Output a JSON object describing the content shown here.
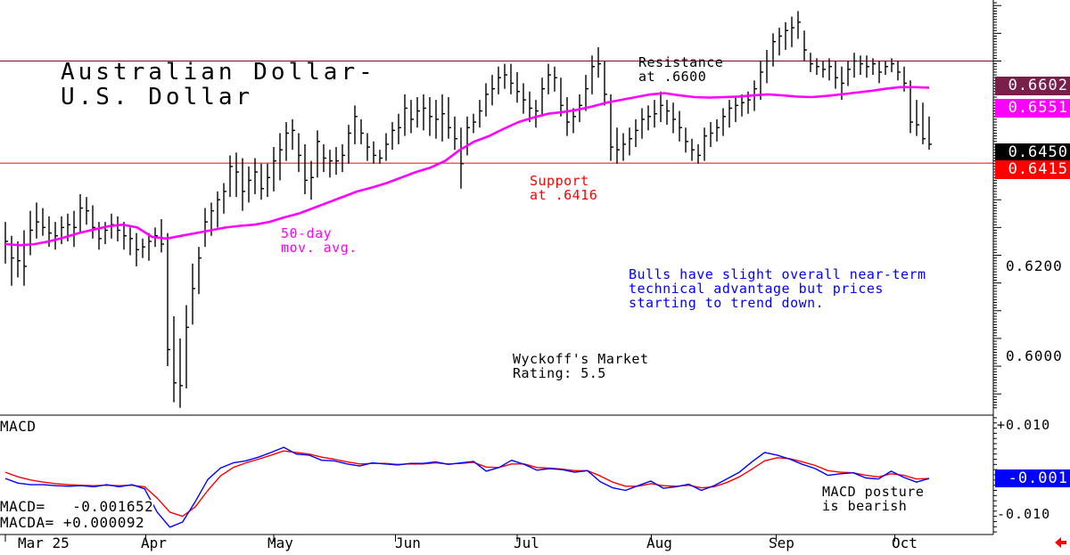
{
  "title_line1": "Australian Dollar-",
  "title_line2": "U.S. Dollar",
  "annotations": {
    "resistance_line1": "Resistance",
    "resistance_line2": "at .6600",
    "support_line1": "Support",
    "support_line2": "at .6416",
    "mavg_line1": "50-day",
    "mavg_line2": "mov. avg.",
    "commentary_line1": "Bulls have slight overall near-term",
    "commentary_line2": "technical advantage but prices",
    "commentary_line3": "starting to trend down.",
    "rating_line1": "Wyckoff's Market",
    "rating_line2": "Rating: 5.5",
    "macd_posture_line1": "MACD posture",
    "macd_posture_line2": "is bearish"
  },
  "price_tags": {
    "resistance": "0.6602",
    "moving_average": "0.6551",
    "last": "0.6450",
    "support": "0.6415"
  },
  "price_ticks": [
    "0.6200",
    "0.6000"
  ],
  "macd_panel": {
    "label": "MACD",
    "ticks": [
      "+0.010",
      "-0.010"
    ],
    "macd_tag": "-0.001",
    "macd_readout": "MACD=   -0.001652",
    "macda_readout": "MACDA= +0.000092"
  },
  "months": [
    "Mar 25",
    "Apr",
    "May",
    "Jun",
    "Jul",
    "Aug",
    "Sep",
    "Oct"
  ],
  "colors": {
    "bars": "#000000",
    "moving_average": "#ff00ff",
    "resistance_line": "#800040",
    "support_line": "#ff0000",
    "macd": "#0000ff",
    "macda": "#ff0000",
    "annotation_support": "#ff0000",
    "annotation_mavg": "#ff00ff",
    "annotation_commentary": "#0000ff",
    "tag_resistance": "#7a1f4a",
    "tag_mavg": "#ff00ff",
    "tag_last": "#000000",
    "tag_support": "#ff0000",
    "tag_macd": "#0000ff"
  },
  "chart_data": {
    "type": "ohlc",
    "price_ylim": [
      0.5965,
      0.671
    ],
    "macd_ylim": [
      -0.0125,
      0.0105
    ],
    "resistance": 0.66,
    "support": 0.6416,
    "price_bars": [
      {
        "h": 0.631,
        "l": 0.6235,
        "c": 0.6275
      },
      {
        "h": 0.6285,
        "l": 0.6195,
        "c": 0.6245
      },
      {
        "h": 0.6275,
        "l": 0.621,
        "c": 0.624
      },
      {
        "h": 0.6295,
        "l": 0.6195,
        "c": 0.623
      },
      {
        "h": 0.633,
        "l": 0.625,
        "c": 0.6295
      },
      {
        "h": 0.6345,
        "l": 0.628,
        "c": 0.631
      },
      {
        "h": 0.6335,
        "l": 0.6285,
        "c": 0.63
      },
      {
        "h": 0.632,
        "l": 0.6265,
        "c": 0.629
      },
      {
        "h": 0.631,
        "l": 0.626,
        "c": 0.6285
      },
      {
        "h": 0.632,
        "l": 0.627,
        "c": 0.63
      },
      {
        "h": 0.6325,
        "l": 0.6275,
        "c": 0.6305
      },
      {
        "h": 0.633,
        "l": 0.6265,
        "c": 0.63
      },
      {
        "h": 0.636,
        "l": 0.629,
        "c": 0.6335
      },
      {
        "h": 0.6355,
        "l": 0.6305,
        "c": 0.633
      },
      {
        "h": 0.634,
        "l": 0.628,
        "c": 0.63
      },
      {
        "h": 0.631,
        "l": 0.626,
        "c": 0.628
      },
      {
        "h": 0.631,
        "l": 0.627,
        "c": 0.6295
      },
      {
        "h": 0.6325,
        "l": 0.628,
        "c": 0.6305
      },
      {
        "h": 0.632,
        "l": 0.6275,
        "c": 0.6295
      },
      {
        "h": 0.631,
        "l": 0.626,
        "c": 0.6285
      },
      {
        "h": 0.63,
        "l": 0.625,
        "c": 0.628
      },
      {
        "h": 0.629,
        "l": 0.623,
        "c": 0.626
      },
      {
        "h": 0.628,
        "l": 0.6245,
        "c": 0.6265
      },
      {
        "h": 0.629,
        "l": 0.624,
        "c": 0.6275
      },
      {
        "h": 0.63,
        "l": 0.6265,
        "c": 0.6285
      },
      {
        "h": 0.6315,
        "l": 0.6255,
        "c": 0.627
      },
      {
        "h": 0.629,
        "l": 0.605,
        "c": 0.608
      },
      {
        "h": 0.614,
        "l": 0.5985,
        "c": 0.602
      },
      {
        "h": 0.61,
        "l": 0.5975,
        "c": 0.6015
      },
      {
        "h": 0.616,
        "l": 0.601,
        "c": 0.612
      },
      {
        "h": 0.6235,
        "l": 0.6125,
        "c": 0.619
      },
      {
        "h": 0.6265,
        "l": 0.618,
        "c": 0.6245
      },
      {
        "h": 0.6335,
        "l": 0.6265,
        "c": 0.631
      },
      {
        "h": 0.6345,
        "l": 0.6285,
        "c": 0.633
      },
      {
        "h": 0.6365,
        "l": 0.63,
        "c": 0.635
      },
      {
        "h": 0.638,
        "l": 0.6325,
        "c": 0.6365
      },
      {
        "h": 0.643,
        "l": 0.6355,
        "c": 0.641
      },
      {
        "h": 0.6435,
        "l": 0.6355,
        "c": 0.64
      },
      {
        "h": 0.6425,
        "l": 0.633,
        "c": 0.6365
      },
      {
        "h": 0.641,
        "l": 0.6345,
        "c": 0.6385
      },
      {
        "h": 0.6425,
        "l": 0.636,
        "c": 0.64
      },
      {
        "h": 0.6415,
        "l": 0.635,
        "c": 0.637
      },
      {
        "h": 0.6415,
        "l": 0.6355,
        "c": 0.639
      },
      {
        "h": 0.6445,
        "l": 0.6365,
        "c": 0.642
      },
      {
        "h": 0.647,
        "l": 0.6385,
        "c": 0.644
      },
      {
        "h": 0.649,
        "l": 0.642,
        "c": 0.647
      },
      {
        "h": 0.6495,
        "l": 0.644,
        "c": 0.6475
      },
      {
        "h": 0.647,
        "l": 0.64,
        "c": 0.643
      },
      {
        "h": 0.645,
        "l": 0.636,
        "c": 0.6385
      },
      {
        "h": 0.642,
        "l": 0.635,
        "c": 0.639
      },
      {
        "h": 0.6475,
        "l": 0.639,
        "c": 0.6455
      },
      {
        "h": 0.645,
        "l": 0.64,
        "c": 0.6425
      },
      {
        "h": 0.644,
        "l": 0.639,
        "c": 0.642
      },
      {
        "h": 0.6445,
        "l": 0.6395,
        "c": 0.642
      },
      {
        "h": 0.645,
        "l": 0.64,
        "c": 0.643
      },
      {
        "h": 0.6485,
        "l": 0.6415,
        "c": 0.647
      },
      {
        "h": 0.652,
        "l": 0.645,
        "c": 0.65
      },
      {
        "h": 0.6495,
        "l": 0.645,
        "c": 0.647
      },
      {
        "h": 0.647,
        "l": 0.642,
        "c": 0.6445
      },
      {
        "h": 0.6455,
        "l": 0.6415,
        "c": 0.643
      },
      {
        "h": 0.644,
        "l": 0.6415,
        "c": 0.6425
      },
      {
        "h": 0.647,
        "l": 0.642,
        "c": 0.645
      },
      {
        "h": 0.649,
        "l": 0.644,
        "c": 0.6475
      },
      {
        "h": 0.6505,
        "l": 0.645,
        "c": 0.648
      },
      {
        "h": 0.654,
        "l": 0.6465,
        "c": 0.6515
      },
      {
        "h": 0.653,
        "l": 0.647,
        "c": 0.6495
      },
      {
        "h": 0.6535,
        "l": 0.648,
        "c": 0.651
      },
      {
        "h": 0.654,
        "l": 0.6475,
        "c": 0.6515
      },
      {
        "h": 0.6535,
        "l": 0.6465,
        "c": 0.65
      },
      {
        "h": 0.653,
        "l": 0.646,
        "c": 0.6495
      },
      {
        "h": 0.654,
        "l": 0.6455,
        "c": 0.6505
      },
      {
        "h": 0.6535,
        "l": 0.646,
        "c": 0.648
      },
      {
        "h": 0.65,
        "l": 0.644,
        "c": 0.646
      },
      {
        "h": 0.648,
        "l": 0.637,
        "c": 0.6415
      },
      {
        "h": 0.65,
        "l": 0.643,
        "c": 0.648
      },
      {
        "h": 0.6505,
        "l": 0.647,
        "c": 0.649
      },
      {
        "h": 0.653,
        "l": 0.648,
        "c": 0.651
      },
      {
        "h": 0.656,
        "l": 0.65,
        "c": 0.654
      },
      {
        "h": 0.6575,
        "l": 0.652,
        "c": 0.655
      },
      {
        "h": 0.659,
        "l": 0.654,
        "c": 0.657
      },
      {
        "h": 0.6595,
        "l": 0.655,
        "c": 0.6575
      },
      {
        "h": 0.6595,
        "l": 0.654,
        "c": 0.656
      },
      {
        "h": 0.658,
        "l": 0.6525,
        "c": 0.6545
      },
      {
        "h": 0.656,
        "l": 0.6505,
        "c": 0.653
      },
      {
        "h": 0.6545,
        "l": 0.649,
        "c": 0.6515
      },
      {
        "h": 0.653,
        "l": 0.648,
        "c": 0.651
      },
      {
        "h": 0.657,
        "l": 0.65,
        "c": 0.655
      },
      {
        "h": 0.6595,
        "l": 0.654,
        "c": 0.6575
      },
      {
        "h": 0.659,
        "l": 0.6545,
        "c": 0.657
      },
      {
        "h": 0.657,
        "l": 0.65,
        "c": 0.652
      },
      {
        "h": 0.6535,
        "l": 0.6465,
        "c": 0.649
      },
      {
        "h": 0.6515,
        "l": 0.647,
        "c": 0.65
      },
      {
        "h": 0.654,
        "l": 0.649,
        "c": 0.652
      },
      {
        "h": 0.6575,
        "l": 0.651,
        "c": 0.655
      },
      {
        "h": 0.661,
        "l": 0.654,
        "c": 0.659
      },
      {
        "h": 0.6625,
        "l": 0.657,
        "c": 0.6595
      },
      {
        "h": 0.66,
        "l": 0.652,
        "c": 0.654
      },
      {
        "h": 0.654,
        "l": 0.642,
        "c": 0.6445
      },
      {
        "h": 0.648,
        "l": 0.6415,
        "c": 0.644
      },
      {
        "h": 0.647,
        "l": 0.642,
        "c": 0.645
      },
      {
        "h": 0.648,
        "l": 0.643,
        "c": 0.646
      },
      {
        "h": 0.6495,
        "l": 0.6445,
        "c": 0.6475
      },
      {
        "h": 0.6515,
        "l": 0.646,
        "c": 0.6495
      },
      {
        "h": 0.652,
        "l": 0.6475,
        "c": 0.65
      },
      {
        "h": 0.653,
        "l": 0.648,
        "c": 0.6505
      },
      {
        "h": 0.6545,
        "l": 0.649,
        "c": 0.652
      },
      {
        "h": 0.653,
        "l": 0.6485,
        "c": 0.651
      },
      {
        "h": 0.6525,
        "l": 0.647,
        "c": 0.6495
      },
      {
        "h": 0.651,
        "l": 0.6455,
        "c": 0.648
      },
      {
        "h": 0.648,
        "l": 0.6435,
        "c": 0.6455
      },
      {
        "h": 0.646,
        "l": 0.642,
        "c": 0.644
      },
      {
        "h": 0.645,
        "l": 0.6415,
        "c": 0.643
      },
      {
        "h": 0.648,
        "l": 0.642,
        "c": 0.6465
      },
      {
        "h": 0.649,
        "l": 0.6445,
        "c": 0.647
      },
      {
        "h": 0.6495,
        "l": 0.6455,
        "c": 0.648
      },
      {
        "h": 0.6515,
        "l": 0.6465,
        "c": 0.65
      },
      {
        "h": 0.653,
        "l": 0.648,
        "c": 0.6515
      },
      {
        "h": 0.6535,
        "l": 0.649,
        "c": 0.652
      },
      {
        "h": 0.654,
        "l": 0.65,
        "c": 0.6525
      },
      {
        "h": 0.6545,
        "l": 0.6505,
        "c": 0.653
      },
      {
        "h": 0.6565,
        "l": 0.651,
        "c": 0.655
      },
      {
        "h": 0.66,
        "l": 0.653,
        "c": 0.658
      },
      {
        "h": 0.662,
        "l": 0.656,
        "c": 0.66
      },
      {
        "h": 0.665,
        "l": 0.659,
        "c": 0.6635
      },
      {
        "h": 0.666,
        "l": 0.661,
        "c": 0.6645
      },
      {
        "h": 0.667,
        "l": 0.662,
        "c": 0.6655
      },
      {
        "h": 0.668,
        "l": 0.6625,
        "c": 0.666
      },
      {
        "h": 0.669,
        "l": 0.664,
        "c": 0.667
      },
      {
        "h": 0.6655,
        "l": 0.66,
        "c": 0.662
      },
      {
        "h": 0.6615,
        "l": 0.658,
        "c": 0.6595
      },
      {
        "h": 0.6605,
        "l": 0.6575,
        "c": 0.659
      },
      {
        "h": 0.66,
        "l": 0.657,
        "c": 0.6585
      },
      {
        "h": 0.6605,
        "l": 0.6565,
        "c": 0.659
      },
      {
        "h": 0.66,
        "l": 0.655,
        "c": 0.657
      },
      {
        "h": 0.659,
        "l": 0.653,
        "c": 0.656
      },
      {
        "h": 0.66,
        "l": 0.6555,
        "c": 0.6585
      },
      {
        "h": 0.6615,
        "l": 0.657,
        "c": 0.66
      },
      {
        "h": 0.661,
        "l": 0.6575,
        "c": 0.6595
      },
      {
        "h": 0.661,
        "l": 0.657,
        "c": 0.659
      },
      {
        "h": 0.6605,
        "l": 0.6575,
        "c": 0.6595
      },
      {
        "h": 0.66,
        "l": 0.656,
        "c": 0.658
      },
      {
        "h": 0.66,
        "l": 0.6575,
        "c": 0.659
      },
      {
        "h": 0.6605,
        "l": 0.658,
        "c": 0.6595
      },
      {
        "h": 0.66,
        "l": 0.6565,
        "c": 0.658
      },
      {
        "h": 0.659,
        "l": 0.6545,
        "c": 0.656
      },
      {
        "h": 0.6565,
        "l": 0.647,
        "c": 0.649
      },
      {
        "h": 0.653,
        "l": 0.6465,
        "c": 0.6485
      },
      {
        "h": 0.6525,
        "l": 0.645,
        "c": 0.646
      },
      {
        "h": 0.65,
        "l": 0.644,
        "c": 0.645
      }
    ],
    "moving_average_50day": [
      0.627,
      0.6268,
      0.627,
      0.6275,
      0.6282,
      0.629,
      0.6296,
      0.6302,
      0.6305,
      0.63,
      0.6283,
      0.628,
      0.6285,
      0.629,
      0.6295,
      0.63,
      0.6303,
      0.6305,
      0.631,
      0.6318,
      0.6325,
      0.6335,
      0.6345,
      0.6355,
      0.6365,
      0.6372,
      0.638,
      0.639,
      0.64,
      0.6408,
      0.642,
      0.644,
      0.6455,
      0.6465,
      0.6478,
      0.649,
      0.6498,
      0.6505,
      0.6508,
      0.6512,
      0.6518,
      0.6525,
      0.653,
      0.6535,
      0.654,
      0.6542,
      0.6538,
      0.6535,
      0.6534,
      0.6535,
      0.6536,
      0.6538,
      0.654,
      0.6538,
      0.6536,
      0.6535,
      0.6537,
      0.654,
      0.6543,
      0.6546,
      0.655,
      0.6553,
      0.6553,
      0.6552
    ],
    "macd": [
      -0.0017,
      -0.0026,
      -0.0029,
      -0.0029,
      -0.0031,
      -0.0032,
      -0.0031,
      -0.0033,
      -0.0029,
      -0.0033,
      -0.0029,
      -0.0037,
      -0.0082,
      -0.0111,
      -0.0101,
      -0.0062,
      -0.0019,
      0.0003,
      0.0013,
      0.0017,
      0.0024,
      0.0033,
      0.0043,
      0.003,
      0.0028,
      0.0018,
      0.0017,
      0.0011,
      0.0007,
      0.0013,
      0.0011,
      0.0009,
      0.0012,
      0.0012,
      0.0015,
      0.001,
      0.0013,
      0.0016,
      -0.0003,
      0.0004,
      0.0018,
      0.001,
      -0.0001,
      0.0002,
      0.0,
      -0.0005,
      -0.0002,
      -0.0023,
      -0.0035,
      -0.004,
      -0.0031,
      -0.0022,
      -0.0036,
      -0.0033,
      -0.0028,
      -0.004,
      -0.0031,
      -0.0018,
      -0.0005,
      0.0015,
      0.0033,
      0.0028,
      0.002,
      0.001,
      0.0002,
      -0.0011,
      -0.0008,
      -0.0006,
      -0.0016,
      -0.0018,
      -0.0003,
      -0.0015,
      -0.0024,
      -0.0017
    ],
    "macda": [
      -0.0005,
      -0.0014,
      -0.002,
      -0.0024,
      -0.0027,
      -0.0029,
      -0.003,
      -0.0031,
      -0.003,
      -0.0031,
      -0.003,
      -0.0033,
      -0.0055,
      -0.0082,
      -0.009,
      -0.0072,
      -0.004,
      -0.0012,
      0.0004,
      0.0013,
      0.002,
      0.0028,
      0.0036,
      0.0033,
      0.003,
      0.0024,
      0.002,
      0.0015,
      0.0011,
      0.0012,
      0.0012,
      0.001,
      0.0011,
      0.0011,
      0.0013,
      0.0011,
      0.0012,
      0.0014,
      0.0005,
      0.0004,
      0.0011,
      0.0011,
      0.0004,
      0.0003,
      0.0001,
      -0.0002,
      -0.0002,
      -0.0012,
      -0.0024,
      -0.0032,
      -0.0032,
      -0.0027,
      -0.0031,
      -0.0032,
      -0.003,
      -0.0035,
      -0.0033,
      -0.0025,
      -0.0014,
      0.0001,
      0.0017,
      0.0023,
      0.0021,
      0.0015,
      0.0008,
      -0.0002,
      -0.0005,
      -0.0006,
      -0.0011,
      -0.0014,
      -0.0008,
      -0.0011,
      -0.0018,
      -0.0017
    ],
    "month_positions_in_bars": [
      0,
      22.5,
      43,
      62.5,
      82,
      103.5,
      123.5,
      142.5
    ]
  }
}
